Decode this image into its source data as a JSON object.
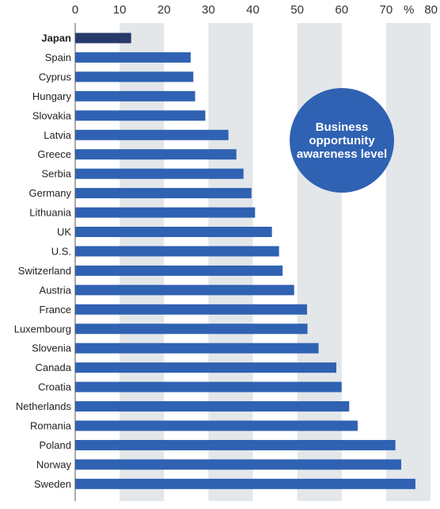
{
  "chart_data": {
    "type": "bar",
    "orientation": "horizontal",
    "categories": [
      "Japan",
      "Spain",
      "Cyprus",
      "Hungary",
      "Slovakia",
      "Latvia",
      "Greece",
      "Serbia",
      "Germany",
      "Lithuania",
      "UK",
      "U.S.",
      "Switzerland",
      "Austria",
      "France",
      "Luxembourg",
      "Slovenia",
      "Canada",
      "Croatia",
      "Netherlands",
      "Romania",
      "Poland",
      "Norway",
      "Sweden"
    ],
    "values": [
      12.6,
      26.0,
      26.6,
      27.0,
      29.3,
      34.5,
      36.3,
      37.9,
      39.7,
      40.5,
      44.3,
      45.9,
      46.7,
      49.3,
      52.2,
      52.3,
      54.8,
      58.8,
      60.0,
      61.7,
      63.6,
      72.1,
      73.4,
      76.6
    ],
    "highlight": "Japan",
    "xlim": [
      0,
      80
    ],
    "xticks": [
      "0",
      "10",
      "20",
      "30",
      "40",
      "50",
      "60",
      "70",
      "80"
    ],
    "unit": "%",
    "annotation": "Business opportunity awareness level",
    "colors": {
      "bar": "#2f62b2",
      "bar_highlight": "#283a6b",
      "band": "#e3e7ea",
      "axis": "#555555"
    }
  }
}
